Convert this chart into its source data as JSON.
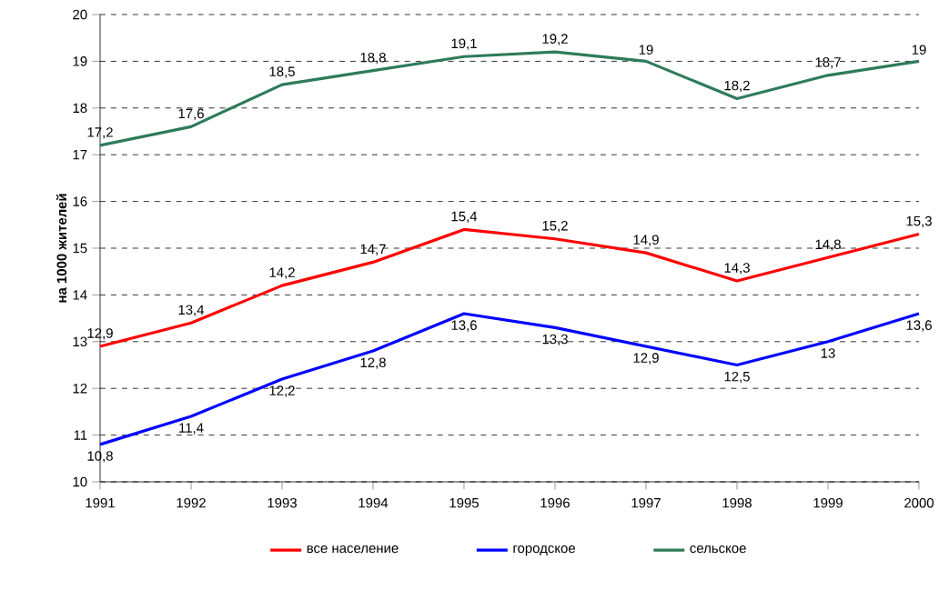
{
  "chart_data": {
    "type": "line",
    "ylabel": "на 1000 жителей",
    "categories": [
      "1991",
      "1992",
      "1993",
      "1994",
      "1995",
      "1996",
      "1997",
      "1998",
      "1999",
      "2000"
    ],
    "series": [
      {
        "name": "все население",
        "color": "#ff0000",
        "values": [
          12.9,
          13.4,
          14.2,
          14.7,
          15.4,
          15.2,
          14.9,
          14.3,
          14.8,
          15.3
        ],
        "value_labels": [
          "12,9",
          "13,4",
          "14,2",
          "14,7",
          "15,4",
          "15,2",
          "14,9",
          "14,3",
          "14,8",
          "15,3"
        ]
      },
      {
        "name": "городское",
        "color": "#0000ff",
        "values": [
          10.8,
          11.4,
          12.2,
          12.8,
          13.6,
          13.3,
          12.9,
          12.5,
          13,
          13.6
        ],
        "value_labels": [
          "10,8",
          "11,4",
          "12,2",
          "12,8",
          "13,6",
          "13,3",
          "12,9",
          "12,5",
          "13",
          "13,6"
        ]
      },
      {
        "name": "сельское",
        "color": "#2e7b5a",
        "values": [
          17.2,
          17.6,
          18.5,
          18.8,
          19.1,
          19.2,
          19,
          18.2,
          18.7,
          19
        ],
        "value_labels": [
          "17,2",
          "17,6",
          "18,5",
          "18,8",
          "19,1",
          "19,2",
          "19",
          "18,2",
          "18,7",
          "19"
        ]
      }
    ],
    "ylim": [
      10,
      20
    ],
    "yticks": [
      10,
      11,
      12,
      13,
      14,
      15,
      16,
      17,
      18,
      19,
      20
    ],
    "grid": "y",
    "legend": "bottom",
    "line_style": "solid",
    "marker": "none"
  }
}
